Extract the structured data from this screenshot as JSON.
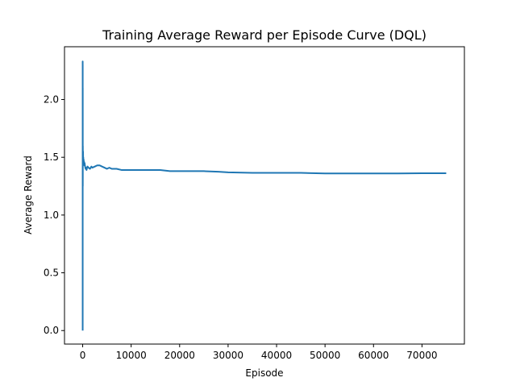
{
  "chart_data": {
    "type": "line",
    "title": "Training Average Reward per Episode Curve (DQL)",
    "xlabel": "Episode",
    "ylabel": "Average Reward",
    "xlim": [
      -3750,
      78750
    ],
    "ylim": [
      -0.117,
      2.457
    ],
    "x_ticks": [
      0,
      10000,
      20000,
      30000,
      40000,
      50000,
      60000,
      70000
    ],
    "y_ticks": [
      0.0,
      0.5,
      1.0,
      1.5,
      2.0
    ],
    "x_tick_labels": [
      "0",
      "10000",
      "20000",
      "30000",
      "40000",
      "50000",
      "60000",
      "70000"
    ],
    "y_tick_labels": [
      "0.0",
      "0.5",
      "1.0",
      "1.5",
      "2.0"
    ],
    "grid": false,
    "line_color": "#1f77b4",
    "series": [
      {
        "x": [
          0,
          1,
          2,
          3,
          5,
          8,
          12,
          20,
          30,
          45,
          60,
          80,
          100,
          130,
          160,
          200,
          250,
          300,
          350,
          400,
          500,
          600,
          700,
          800,
          900,
          1000,
          1200,
          1500,
          1800,
          2000,
          2500,
          3000,
          3500,
          4000,
          4500,
          5000,
          5500,
          6000,
          7000,
          8000,
          9000,
          10000,
          12000,
          14000,
          16000,
          18000,
          20000,
          22000,
          25000,
          28000,
          30000,
          35000,
          40000,
          42000,
          45000,
          50000,
          55000,
          60000,
          65000,
          70000,
          75000
        ],
        "y": [
          0.0,
          2.33,
          1.1,
          1.8,
          2.3,
          1.3,
          2.1,
          1.25,
          1.6,
          1.5,
          1.48,
          1.55,
          1.46,
          1.5,
          1.45,
          1.48,
          1.44,
          1.46,
          1.43,
          1.45,
          1.42,
          1.4,
          1.41,
          1.39,
          1.41,
          1.42,
          1.41,
          1.4,
          1.42,
          1.41,
          1.42,
          1.43,
          1.43,
          1.42,
          1.41,
          1.4,
          1.41,
          1.4,
          1.4,
          1.39,
          1.39,
          1.39,
          1.39,
          1.39,
          1.39,
          1.38,
          1.38,
          1.38,
          1.38,
          1.375,
          1.37,
          1.365,
          1.365,
          1.365,
          1.365,
          1.36,
          1.36,
          1.36,
          1.36,
          1.362,
          1.362
        ]
      }
    ]
  }
}
